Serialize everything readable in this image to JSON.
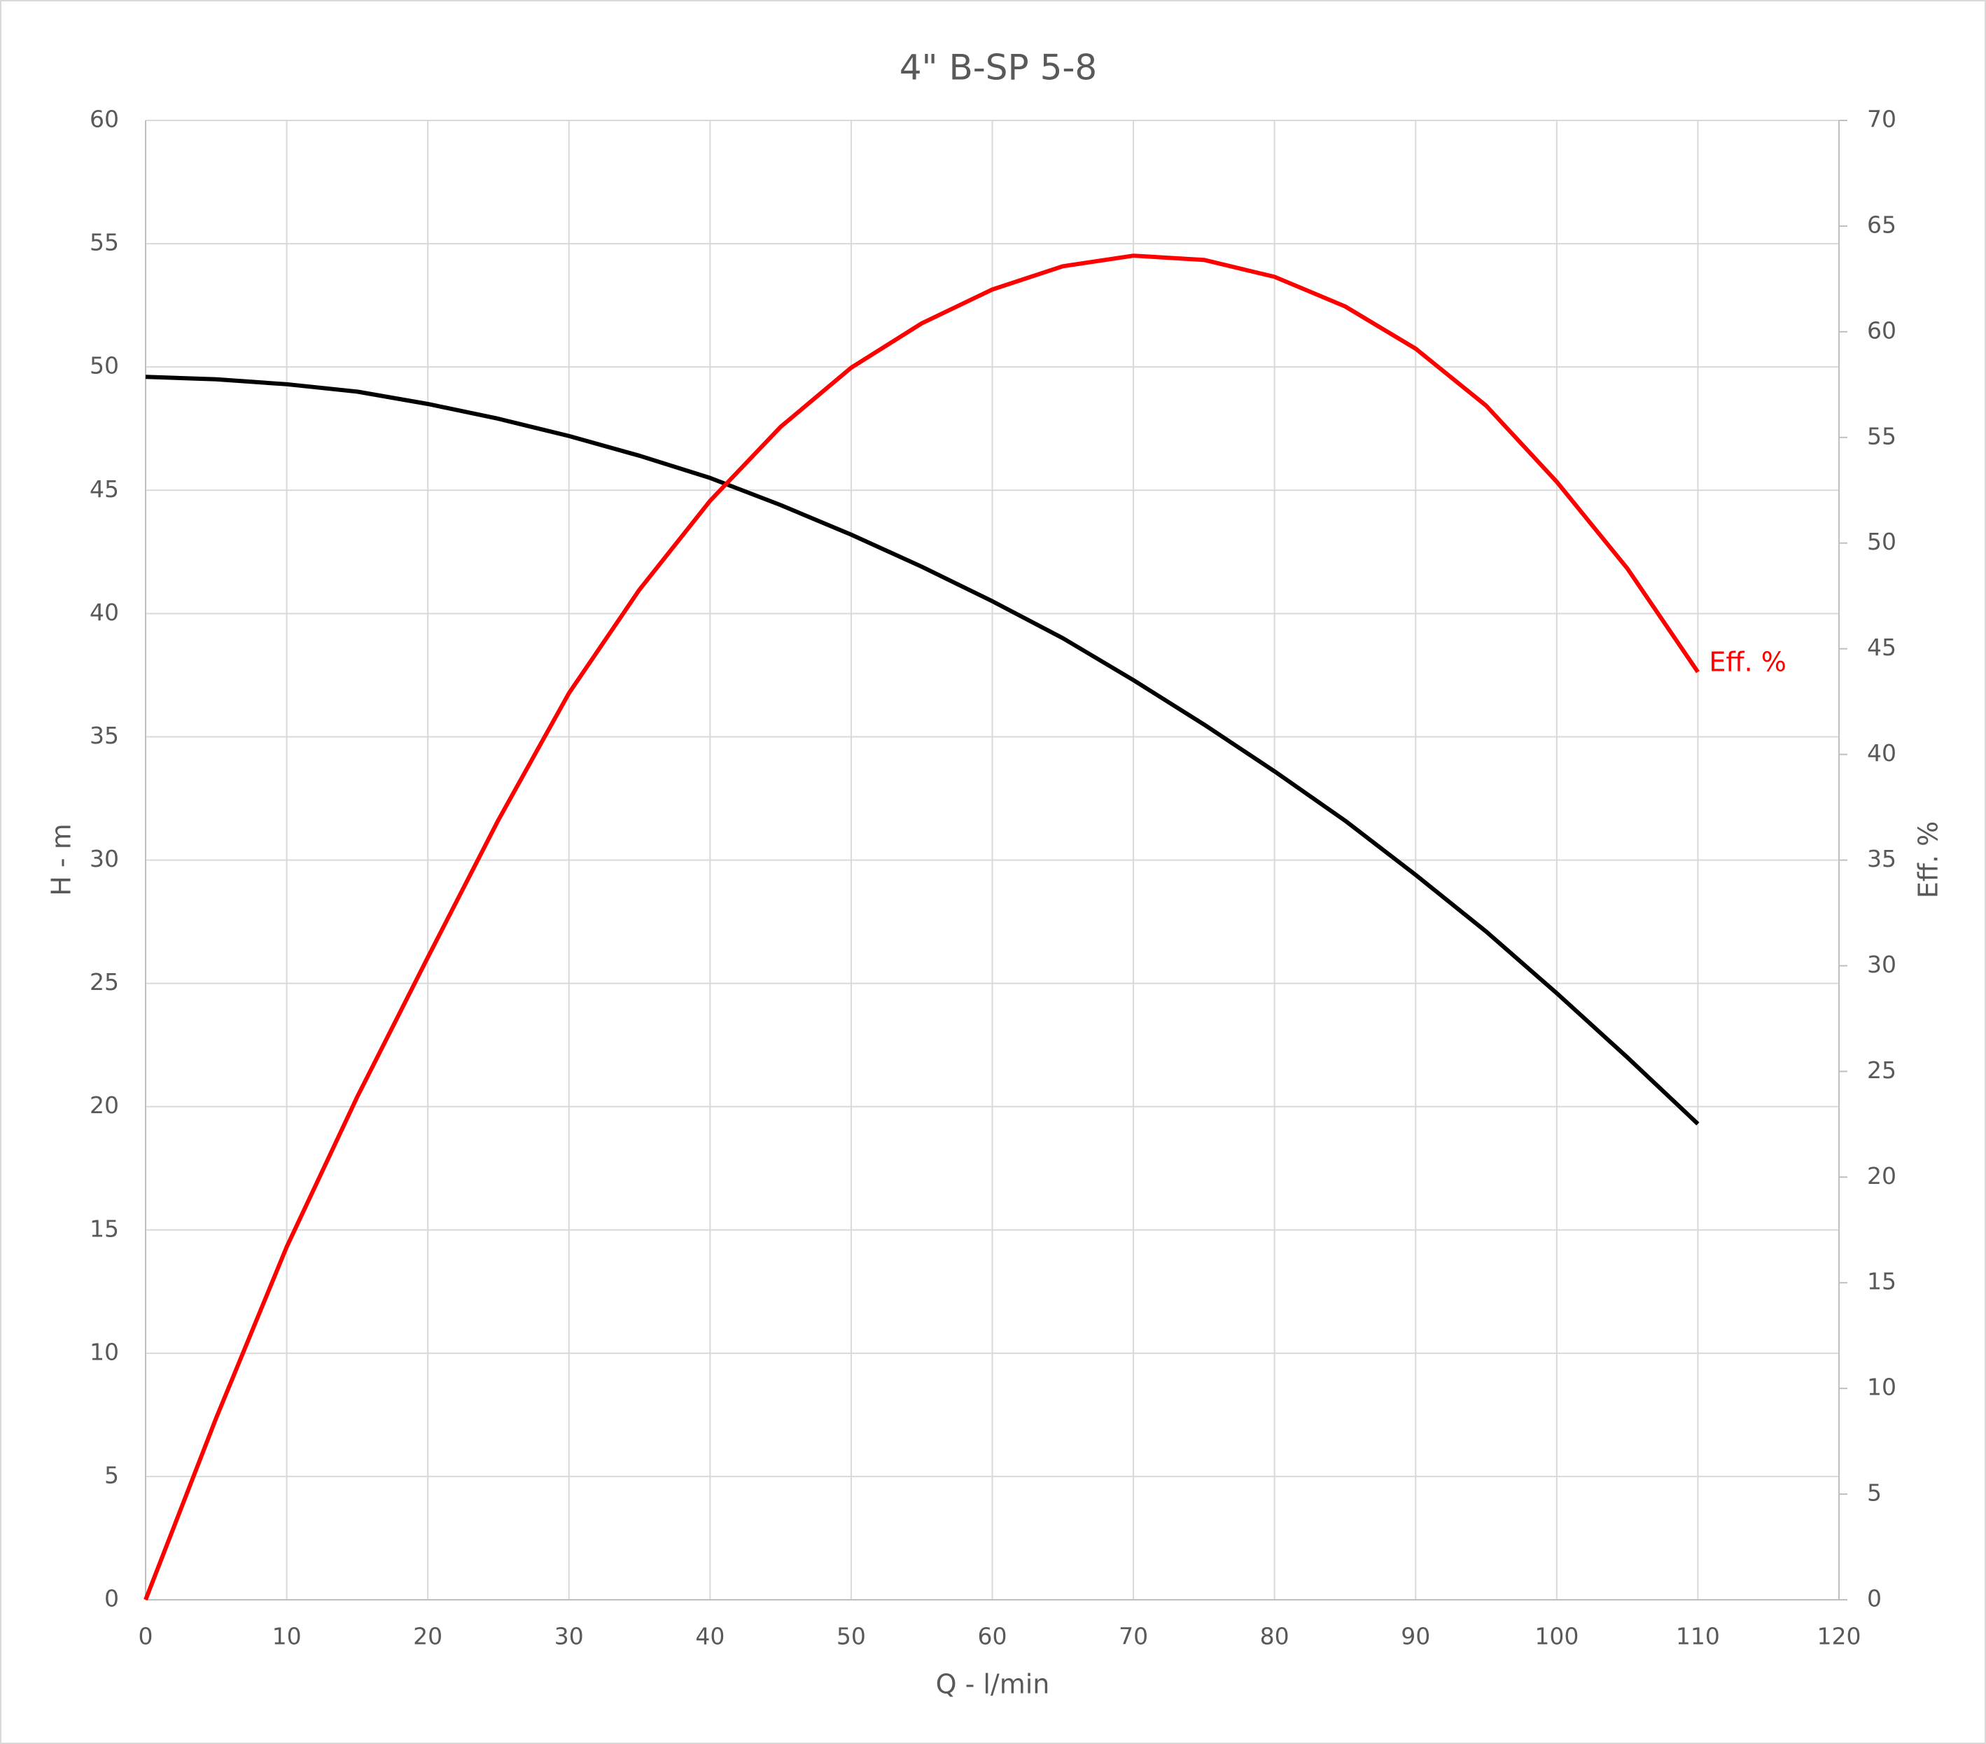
{
  "chart_data": {
    "type": "line",
    "title": "4\" B-SP 5-8",
    "xlabel": "Q - l/min",
    "ylabel": "H - m",
    "y2label": "Eff. %",
    "x": [
      0,
      5,
      10,
      15,
      20,
      25,
      30,
      35,
      40,
      45,
      50,
      55,
      60,
      65,
      70,
      75,
      80,
      85,
      90,
      95,
      100,
      105,
      110
    ],
    "series": [
      {
        "color": "#000000",
        "values": [
          49.6,
          49.5,
          49.3,
          49.0,
          48.5,
          47.9,
          47.2,
          46.4,
          45.5,
          44.4,
          43.2,
          41.9,
          40.5,
          39.0,
          37.3,
          35.5,
          33.6,
          31.6,
          29.4,
          27.1,
          24.6,
          22.0,
          19.3
        ]
      },
      {
        "name": "Eff. %",
        "color": "#ff0000",
        "axis": "y2",
        "values": [
          0,
          8.6,
          16.7,
          23.8,
          30.4,
          36.9,
          42.9,
          47.8,
          52.0,
          55.5,
          58.3,
          60.4,
          62.0,
          63.1,
          63.6,
          63.4,
          62.6,
          61.2,
          59.2,
          56.5,
          52.9,
          48.8,
          43.9
        ]
      }
    ],
    "xlim": [
      0,
      120
    ],
    "xticks": [
      0,
      10,
      20,
      30,
      40,
      50,
      60,
      70,
      80,
      90,
      100,
      110,
      120
    ],
    "ylim": [
      0,
      60
    ],
    "yticks": [
      0,
      5,
      10,
      15,
      20,
      25,
      30,
      35,
      40,
      45,
      50,
      55,
      60
    ],
    "y2lim": [
      0,
      70
    ],
    "y2ticks": [
      0,
      5,
      10,
      15,
      20,
      25,
      30,
      35,
      40,
      45,
      50,
      55,
      60,
      65,
      70
    ],
    "grid": true
  }
}
